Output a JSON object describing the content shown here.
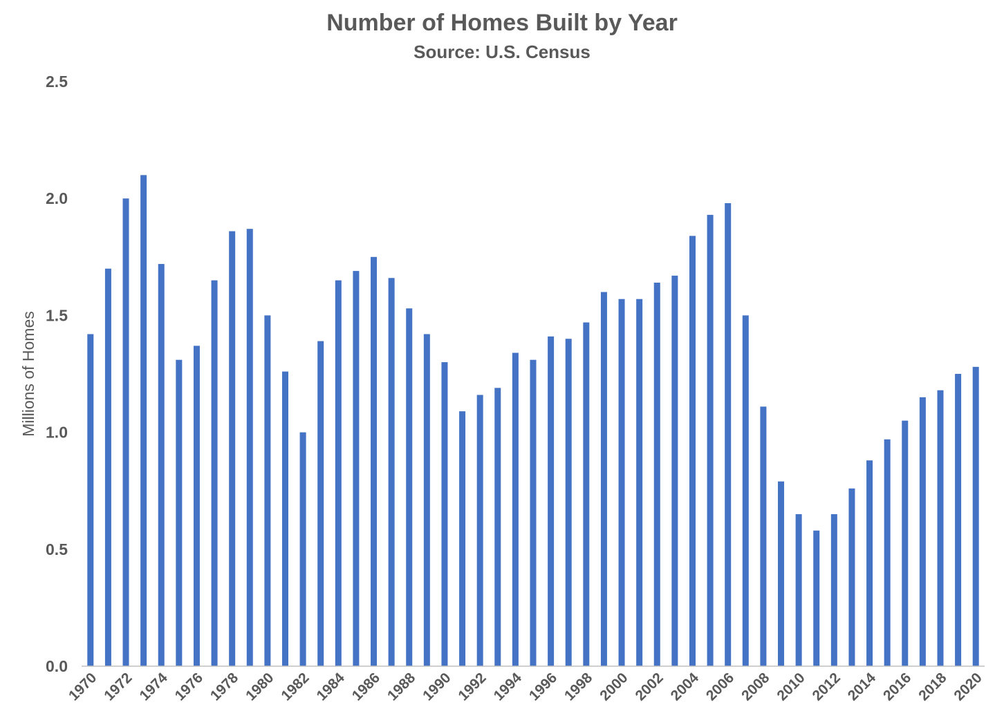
{
  "chart_data": {
    "type": "bar",
    "title": "Number of Homes Built by Year",
    "subtitle": "Source: U.S. Census",
    "xlabel": "",
    "ylabel": "Millions of Homes",
    "ylim": [
      0,
      2.5
    ],
    "yticks": [
      "0.0",
      "0.5",
      "1.0",
      "1.5",
      "2.0",
      "2.5"
    ],
    "grid": false,
    "legend": "none",
    "bar_color": "#4472C4",
    "categories": [
      "1970",
      "1971",
      "1972",
      "1973",
      "1974",
      "1975",
      "1976",
      "1977",
      "1978",
      "1979",
      "1980",
      "1981",
      "1982",
      "1983",
      "1984",
      "1985",
      "1986",
      "1987",
      "1988",
      "1989",
      "1990",
      "1991",
      "1992",
      "1993",
      "1994",
      "1995",
      "1996",
      "1997",
      "1998",
      "1999",
      "2000",
      "2001",
      "2002",
      "2003",
      "2004",
      "2005",
      "2006",
      "2007",
      "2008",
      "2009",
      "2010",
      "2011",
      "2012",
      "2013",
      "2014",
      "2015",
      "2016",
      "2017",
      "2018",
      "2019",
      "2020"
    ],
    "x_tick_labels": [
      "1970",
      "1972",
      "1974",
      "1976",
      "1978",
      "1980",
      "1982",
      "1984",
      "1986",
      "1988",
      "1990",
      "1992",
      "1994",
      "1996",
      "1998",
      "2000",
      "2002",
      "2004",
      "2006",
      "2008",
      "2010",
      "2012",
      "2014",
      "2016",
      "2018",
      "2020"
    ],
    "values": [
      1.42,
      1.7,
      2.0,
      2.1,
      1.72,
      1.31,
      1.37,
      1.65,
      1.86,
      1.87,
      1.5,
      1.26,
      1.0,
      1.39,
      1.65,
      1.69,
      1.75,
      1.66,
      1.53,
      1.42,
      1.3,
      1.09,
      1.16,
      1.19,
      1.34,
      1.31,
      1.41,
      1.4,
      1.47,
      1.6,
      1.57,
      1.57,
      1.64,
      1.67,
      1.84,
      1.93,
      1.98,
      1.5,
      1.11,
      0.79,
      0.65,
      0.58,
      0.65,
      0.76,
      0.88,
      0.97,
      1.05,
      1.15,
      1.18,
      1.25,
      1.28
    ]
  }
}
